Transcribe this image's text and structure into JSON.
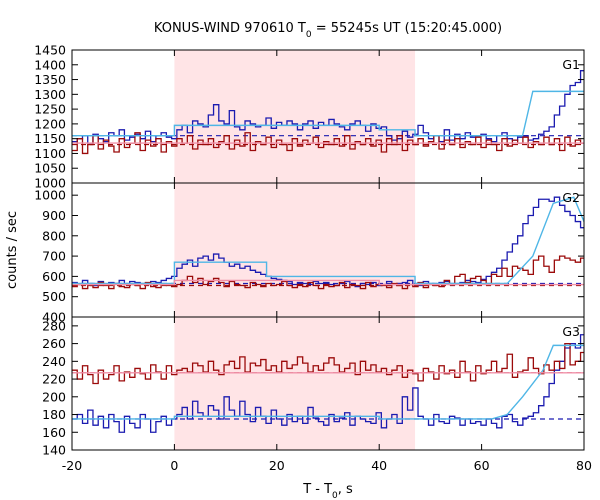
{
  "chart_data": {
    "type": "line",
    "title": "KONUS-WIND 970610 T",
    "title_sub": "0",
    "title_rest": " = 55245s UT (15:20:45.000)",
    "xlabel": "T - T",
    "xlabel_sub": "0",
    "xlabel_rest": ", s",
    "ylabel": "counts / sec",
    "xlim": [
      -20,
      80
    ],
    "x_ticks": [
      -20,
      0,
      20,
      40,
      60,
      80
    ],
    "shaded_interval": [
      0,
      47
    ],
    "colors": {
      "shade": "#ffe4e6",
      "dark_blue": "#1b1bb0",
      "dark_red": "#9b0a0a",
      "light_blue": "#4fb6e6",
      "pink": "#f090a8"
    },
    "panels": [
      {
        "label": "G1",
        "ylim": [
          1000,
          1450
        ],
        "y_ticks": [
          1000,
          1050,
          1100,
          1150,
          1200,
          1250,
          1300,
          1350,
          1400,
          1450
        ],
        "background_level_red": 1130,
        "background_level_blue": 1160,
        "series": [
          {
            "color": "dark_blue",
            "step": true,
            "start": -20,
            "dx": 1.024,
            "values": [
              1140,
              1150,
              1160,
              1135,
              1165,
              1150,
              1140,
              1170,
              1160,
              1180,
              1145,
              1155,
              1165,
              1150,
              1175,
              1140,
              1160,
              1170,
              1155,
              1150,
              1180,
              1195,
              1170,
              1210,
              1200,
              1190,
              1230,
              1265,
              1210,
              1200,
              1245,
              1190,
              1180,
              1210,
              1200,
              1190,
              1195,
              1220,
              1185,
              1205,
              1195,
              1210,
              1200,
              1180,
              1200,
              1210,
              1185,
              1205,
              1195,
              1215,
              1200,
              1190,
              1180,
              1200,
              1210,
              1195,
              1175,
              1200,
              1185,
              1190,
              1160,
              1145,
              1150,
              1175,
              1155,
              1165,
              1195,
              1170,
              1150,
              1160,
              1140,
              1180,
              1145,
              1165,
              1150,
              1170,
              1155,
              1160,
              1165,
              1150,
              1140,
              1160,
              1170,
              1150,
              1145,
              1155,
              1160,
              1145,
              1150,
              1165,
              1175,
              1190,
              1230,
              1260,
              1300,
              1330,
              1340,
              1380,
              1350,
              1400
            ]
          },
          {
            "color": "dark_red",
            "step": true,
            "start": -20,
            "dx": 1.024,
            "values": [
              1110,
              1150,
              1100,
              1130,
              1160,
              1115,
              1145,
              1125,
              1105,
              1150,
              1120,
              1135,
              1170,
              1110,
              1145,
              1125,
              1150,
              1105,
              1140,
              1125,
              1150,
              1135,
              1160,
              1115,
              1145,
              1130,
              1150,
              1120,
              1140,
              1160,
              1115,
              1145,
              1125,
              1170,
              1110,
              1140,
              1130,
              1155,
              1120,
              1145,
              1130,
              1110,
              1150,
              1125,
              1145,
              1135,
              1155,
              1120,
              1140,
              1130,
              1150,
              1125,
              1160,
              1115,
              1140,
              1130,
              1150,
              1125,
              1145,
              1105,
              1150,
              1130,
              1160,
              1110,
              1145,
              1130,
              1150,
              1125,
              1140,
              1160,
              1115,
              1145,
              1130,
              1150,
              1120,
              1140,
              1130,
              1155,
              1120,
              1145,
              1130,
              1110,
              1150,
              1125,
              1145,
              1135,
              1155,
              1120,
              1140,
              1130,
              1155,
              1130,
              1150,
              1110,
              1155,
              1125,
              1145,
              1135,
              1160,
              1150
            ]
          },
          {
            "color": "light_blue",
            "step": false,
            "points": [
              [
                -20,
                1160
              ],
              [
                0,
                1160
              ],
              [
                0,
                1195
              ],
              [
                40,
                1195
              ],
              [
                40,
                1180
              ],
              [
                47,
                1180
              ],
              [
                47,
                1160
              ],
              [
                68,
                1160
              ],
              [
                70,
                1310
              ],
              [
                80,
                1310
              ]
            ]
          },
          {
            "color": "pink",
            "step": false,
            "points": [
              [
                -20,
                1135
              ],
              [
                80,
                1135
              ]
            ]
          }
        ]
      },
      {
        "label": "G2",
        "ylim": [
          400,
          1060
        ],
        "y_ticks": [
          400,
          500,
          600,
          700,
          800,
          900,
          1000
        ],
        "background_level_red": 555,
        "background_level_blue": 565,
        "series": [
          {
            "color": "dark_blue",
            "step": true,
            "start": -20,
            "dx": 1.024,
            "values": [
              570,
              560,
              580,
              565,
              555,
              575,
              560,
              570,
              565,
              580,
              560,
              575,
              570,
              565,
              560,
              575,
              570,
              580,
              590,
              600,
              640,
              660,
              680,
              650,
              690,
              700,
              680,
              710,
              690,
              670,
              650,
              660,
              640,
              650,
              630,
              620,
              610,
              600,
              590,
              585,
              580,
              575,
              560,
              570,
              565,
              560,
              575,
              565,
              570,
              560,
              555,
              565,
              575,
              560,
              550,
              565,
              560,
              570,
              555,
              560,
              575,
              560,
              565,
              570,
              580,
              560,
              555,
              575,
              565,
              560,
              570,
              575,
              560,
              565,
              570,
              580,
              575,
              570,
              585,
              600,
              620,
              640,
              680,
              720,
              760,
              800,
              860,
              900,
              940,
              980,
              980,
              970,
              990,
              950,
              920,
              900,
              870,
              840,
              810,
              780
            ]
          },
          {
            "color": "dark_red",
            "step": true,
            "start": -20,
            "dx": 1.024,
            "values": [
              550,
              560,
              540,
              555,
              545,
              570,
              555,
              540,
              565,
              550,
              545,
              560,
              555,
              540,
              570,
              550,
              545,
              560,
              555,
              550,
              560,
              580,
              600,
              570,
              590,
              560,
              575,
              590,
              570,
              550,
              575,
              560,
              555,
              545,
              570,
              560,
              550,
              565,
              555,
              560,
              575,
              555,
              545,
              560,
              550,
              570,
              555,
              540,
              560,
              550,
              555,
              570,
              545,
              560,
              555,
              540,
              570,
              550,
              560,
              555,
              545,
              565,
              555,
              540,
              560,
              550,
              570,
              545,
              560,
              555,
              550,
              580,
              560,
              600,
              610,
              570,
              590,
              600,
              580,
              560,
              610,
              600,
              640,
              600,
              650,
              640,
              630,
              610,
              680,
              700,
              650,
              620,
              680,
              700,
              690,
              680,
              670,
              690,
              700,
              690
            ]
          },
          {
            "color": "light_blue",
            "step": false,
            "points": [
              [
                -20,
                565
              ],
              [
                0,
                565
              ],
              [
                0,
                670
              ],
              [
                18,
                670
              ],
              [
                18,
                600
              ],
              [
                47,
                600
              ],
              [
                47,
                565
              ],
              [
                65,
                565
              ],
              [
                70,
                700
              ],
              [
                74,
                960
              ],
              [
                78,
                990
              ],
              [
                80,
                870
              ]
            ]
          },
          {
            "color": "pink",
            "step": false,
            "points": [
              [
                -20,
                560
              ],
              [
                0,
                560
              ],
              [
                0,
                580
              ],
              [
                40,
                580
              ],
              [
                40,
                560
              ],
              [
                80,
                560
              ]
            ]
          }
        ]
      },
      {
        "label": "G3",
        "ylim": [
          140,
          290
        ],
        "y_ticks": [
          140,
          160,
          180,
          200,
          220,
          240,
          260,
          280
        ],
        "background_level_red": 227,
        "background_level_blue": 175,
        "series": [
          {
            "color": "dark_blue",
            "step": true,
            "start": -20,
            "dx": 1.024,
            "values": [
              175,
              180,
              170,
              185,
              168,
              178,
              165,
              180,
              172,
              160,
              178,
              170,
              165,
              180,
              175,
              160,
              172,
              178,
              168,
              175,
              180,
              188,
              175,
              195,
              182,
              178,
              190,
              185,
              175,
              200,
              185,
              178,
              195,
              180,
              172,
              188,
              178,
              170,
              185,
              175,
              168,
              180,
              172,
              178,
              170,
              188,
              176,
              172,
              168,
              180,
              172,
              176,
              182,
              168,
              178,
              175,
              172,
              170,
              182,
              165,
              175,
              180,
              170,
              200,
              185,
              210,
              178,
              175,
              168,
              180,
              172,
              170,
              178,
              176,
              168,
              175,
              170,
              172,
              168,
              175,
              170,
              165,
              178,
              180,
              172,
              168,
              176,
              178,
              182,
              190,
              200,
              215,
              230,
              240,
              255,
              260,
              255,
              270,
              280,
              175
            ]
          },
          {
            "color": "dark_red",
            "step": true,
            "start": -20,
            "dx": 1.024,
            "values": [
              230,
              220,
              235,
              225,
              215,
              230,
              220,
              225,
              235,
              218,
              228,
              222,
              232,
              226,
              220,
              236,
              228,
              220,
              235,
              225,
              230,
              232,
              228,
              238,
              235,
              228,
              240,
              230,
              225,
              236,
              240,
              232,
              245,
              228,
              238,
              235,
              242,
              230,
              235,
              228,
              240,
              232,
              236,
              245,
              238,
              228,
              235,
              230,
              238,
              244,
              236,
              228,
              232,
              238,
              225,
              240,
              230,
              236,
              228,
              232,
              225,
              230,
              235,
              222,
              230,
              226,
              218,
              232,
              228,
              220,
              235,
              226,
              230,
              222,
              240,
              228,
              218,
              235,
              226,
              230,
              240,
              228,
              232,
              248,
              222,
              228,
              230,
              244,
              232,
              226,
              236,
              230,
              240,
              232,
              260,
              236,
              240,
              250,
              270,
              225
            ]
          },
          {
            "color": "light_blue",
            "step": false,
            "points": [
              [
                -20,
                175
              ],
              [
                0,
                175
              ],
              [
                0,
                178
              ],
              [
                40,
                178
              ],
              [
                40,
                175
              ],
              [
                62,
                175
              ],
              [
                65,
                180
              ],
              [
                68,
                200
              ],
              [
                72,
                230
              ],
              [
                74,
                258
              ],
              [
                80,
                258
              ]
            ]
          },
          {
            "color": "pink",
            "step": false,
            "points": [
              [
                -20,
                227
              ],
              [
                80,
                227
              ]
            ]
          }
        ]
      }
    ]
  }
}
